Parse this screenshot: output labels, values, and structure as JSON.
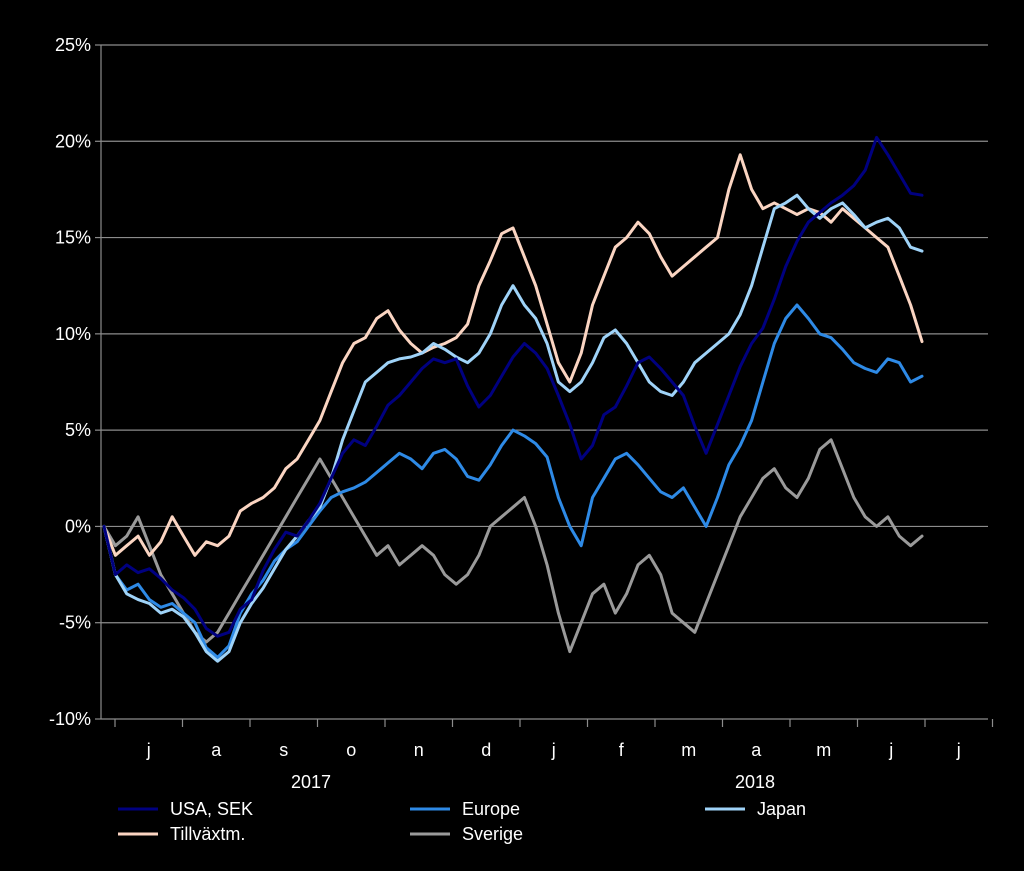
{
  "chart_data": {
    "type": "line",
    "y_ticks": [
      "25%",
      "20%",
      "15%",
      "10%",
      "5%",
      "0%",
      "-5%",
      "-10%"
    ],
    "ylim": [
      -10,
      25
    ],
    "months": [
      "j",
      "a",
      "s",
      "o",
      "n",
      "d",
      "j",
      "f",
      "m",
      "a",
      "m",
      "j",
      "j"
    ],
    "years": [
      "2017",
      "2018"
    ],
    "grid": true,
    "legend_position": "bottom",
    "series": [
      {
        "name": "USA, SEK",
        "color": "#000080",
        "values": [
          0.0,
          -2.5,
          -2.0,
          -2.4,
          -2.2,
          -2.7,
          -3.3,
          -3.7,
          -4.3,
          -5.3,
          -5.7,
          -5.5,
          -4.3,
          -3.8,
          -2.3,
          -1.2,
          -0.3,
          -0.5,
          0.3,
          1.2,
          2.5,
          3.8,
          4.5,
          4.2,
          5.2,
          6.3,
          6.8,
          7.5,
          8.2,
          8.7,
          8.5,
          8.7,
          7.3,
          6.2,
          6.8,
          7.8,
          8.8,
          9.5,
          9.0,
          8.2,
          6.8,
          5.3,
          3.5,
          4.2,
          5.8,
          6.2,
          7.3,
          8.5,
          8.8,
          8.2,
          7.5,
          6.8,
          5.2,
          3.8,
          5.3,
          6.8,
          8.3,
          9.5,
          10.3,
          11.8,
          13.5,
          14.8,
          15.8,
          16.3,
          16.8,
          17.2,
          17.7,
          18.5,
          20.2,
          19.3,
          18.3,
          17.3,
          17.2
        ]
      },
      {
        "name": "Europe",
        "color": "#2e8ae6",
        "values": [
          0.0,
          -2.5,
          -3.3,
          -3.0,
          -3.8,
          -4.2,
          -4.0,
          -4.5,
          -5.0,
          -6.3,
          -6.8,
          -6.2,
          -4.5,
          -3.5,
          -2.8,
          -1.8,
          -1.2,
          -0.8,
          0.0,
          0.8,
          1.5,
          1.8,
          2.0,
          2.3,
          2.8,
          3.3,
          3.8,
          3.5,
          3.0,
          3.8,
          4.0,
          3.5,
          2.6,
          2.4,
          3.2,
          4.2,
          5.0,
          4.7,
          4.3,
          3.6,
          1.5,
          0.0,
          -1.0,
          1.5,
          2.5,
          3.5,
          3.8,
          3.2,
          2.5,
          1.8,
          1.5,
          2.0,
          1.0,
          0.0,
          1.5,
          3.2,
          4.2,
          5.5,
          7.5,
          9.5,
          10.8,
          11.5,
          10.8,
          10.0,
          9.8,
          9.2,
          8.5,
          8.2,
          8.0,
          8.7,
          8.5,
          7.5,
          7.8
        ]
      },
      {
        "name": "Japan",
        "color": "#9fd3f8",
        "values": [
          0.0,
          -2.5,
          -3.5,
          -3.8,
          -4.0,
          -4.5,
          -4.3,
          -4.7,
          -5.5,
          -6.5,
          -7.0,
          -6.5,
          -5.0,
          -4.0,
          -3.2,
          -2.2,
          -1.2,
          -0.5,
          0.3,
          1.0,
          2.5,
          4.5,
          6.0,
          7.5,
          8.0,
          8.5,
          8.7,
          8.8,
          9.0,
          9.5,
          9.2,
          8.8,
          8.5,
          9.0,
          10.0,
          11.5,
          12.5,
          11.5,
          10.8,
          9.5,
          7.5,
          7.0,
          7.5,
          8.5,
          9.8,
          10.2,
          9.5,
          8.5,
          7.5,
          7.0,
          6.8,
          7.5,
          8.5,
          9.0,
          9.5,
          10.0,
          11.0,
          12.5,
          14.5,
          16.5,
          16.8,
          17.2,
          16.5,
          16.0,
          16.5,
          16.8,
          16.2,
          15.5,
          15.8,
          16.0,
          15.5,
          14.5,
          14.3
        ]
      },
      {
        "name": "Tillväxtm.",
        "color": "#fbd5c2",
        "values": [
          0.0,
          -1.5,
          -1.0,
          -0.5,
          -1.5,
          -0.8,
          0.5,
          -0.5,
          -1.5,
          -0.8,
          -1.0,
          -0.5,
          0.8,
          1.2,
          1.5,
          2.0,
          3.0,
          3.5,
          4.5,
          5.5,
          7.0,
          8.5,
          9.5,
          9.8,
          10.8,
          11.2,
          10.2,
          9.5,
          9.0,
          9.3,
          9.5,
          9.8,
          10.5,
          12.5,
          13.8,
          15.2,
          15.5,
          14.0,
          12.5,
          10.5,
          8.5,
          7.5,
          9.0,
          11.5,
          13.0,
          14.5,
          15.0,
          15.8,
          15.2,
          14.0,
          13.0,
          13.5,
          14.0,
          14.5,
          15.0,
          17.5,
          19.3,
          17.5,
          16.5,
          16.8,
          16.5,
          16.2,
          16.5,
          16.3,
          15.8,
          16.5,
          16.0,
          15.5,
          15.0,
          14.5,
          13.0,
          11.5,
          9.6
        ]
      },
      {
        "name": "Sverige",
        "color": "#9a9a9a",
        "values": [
          0.0,
          -1.0,
          -0.5,
          0.5,
          -1.0,
          -2.5,
          -3.5,
          -4.5,
          -5.5,
          -6.0,
          -5.5,
          -4.5,
          -3.5,
          -2.5,
          -1.5,
          -0.5,
          0.5,
          1.5,
          2.5,
          3.5,
          2.5,
          1.5,
          0.5,
          -0.5,
          -1.5,
          -1.0,
          -2.0,
          -1.5,
          -1.0,
          -1.5,
          -2.5,
          -3.0,
          -2.5,
          -1.5,
          0.0,
          0.5,
          1.0,
          1.5,
          0.0,
          -2.0,
          -4.5,
          -6.5,
          -5.0,
          -3.5,
          -3.0,
          -4.5,
          -3.5,
          -2.0,
          -1.5,
          -2.5,
          -4.5,
          -5.0,
          -5.5,
          -4.0,
          -2.5,
          -1.0,
          0.5,
          1.5,
          2.5,
          3.0,
          2.0,
          1.5,
          2.5,
          4.0,
          4.5,
          3.0,
          1.5,
          0.5,
          0.0,
          0.5,
          -0.5,
          -1.0,
          -0.5
        ]
      }
    ]
  }
}
